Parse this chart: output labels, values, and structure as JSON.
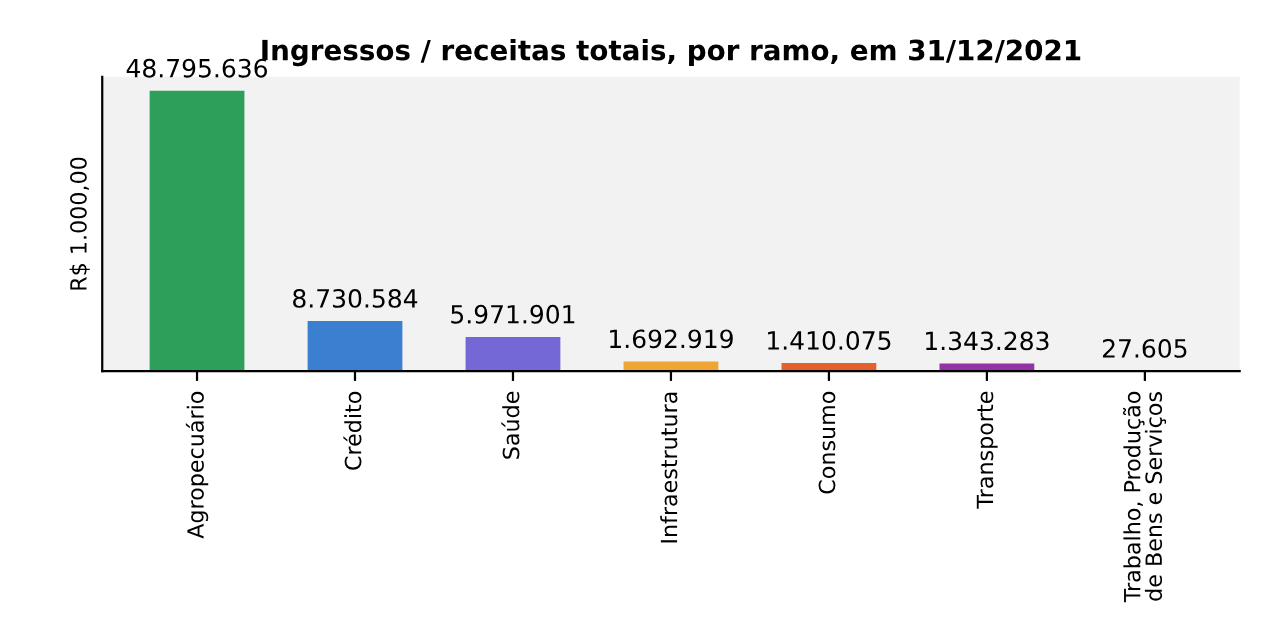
{
  "chart_data": {
    "type": "bar",
    "title": "Ingressos / receitas totais, por ramo, em 31/12/2021",
    "ylabel": "R$ 1.000,00",
    "categories": [
      "Agropecuário",
      "Crédito",
      "Saúde",
      "Infraestrutura",
      "Consumo",
      "Transporte",
      "Trabalho, Produção\nde Bens e Serviços"
    ],
    "values": [
      48795636,
      8730584,
      5971901,
      1692919,
      1410075,
      1343283,
      27605
    ],
    "value_labels": [
      "48.795.636",
      "8.730.584",
      "5.971.901",
      "1.692.919",
      "1.410.075",
      "1.343.283",
      "27.605"
    ],
    "colors": [
      "#2e9e5b",
      "#3b7fd1",
      "#7467d6",
      "#eea533",
      "#e4602c",
      "#9433a8",
      "#6f6f6f"
    ],
    "grid": false,
    "legend": false
  }
}
